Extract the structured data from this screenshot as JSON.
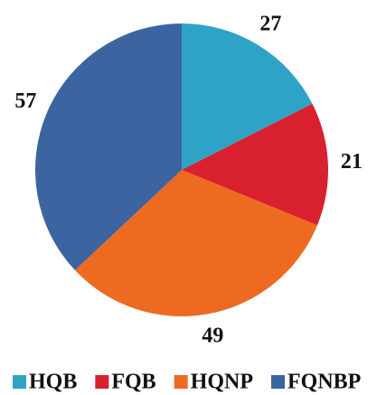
{
  "chart_data": {
    "type": "pie",
    "categories": [
      "HQB",
      "FQB",
      "HQNP",
      "FQNBP"
    ],
    "values": [
      27,
      21,
      49,
      57
    ],
    "colors": [
      "#2fa3c6",
      "#d9202e",
      "#ef6a21",
      "#3c64a0"
    ],
    "legend": "bottom"
  }
}
